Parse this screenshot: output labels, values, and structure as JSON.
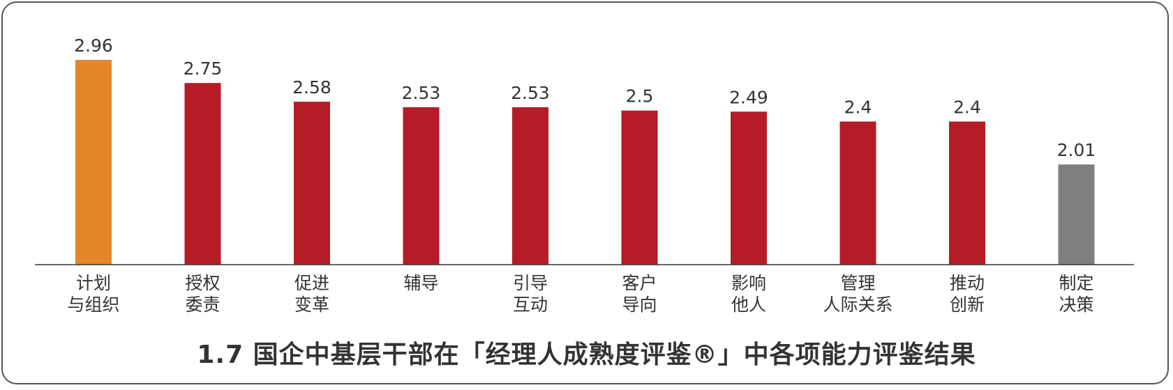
{
  "caption": "1.7  国企中基层干部在「经理人成熟度评鉴®」中各项能力评鉴结果",
  "colors": {
    "highlight": "#E5862A",
    "main": "#B51C27",
    "low": "#7F7F7F",
    "axis": "#333333",
    "text": "#333333"
  },
  "chart_data": {
    "type": "bar",
    "categories": [
      [
        "计划",
        "与组织"
      ],
      [
        "授权",
        "委责"
      ],
      [
        "促进",
        "变革"
      ],
      [
        "辅导"
      ],
      [
        "引导",
        "互动"
      ],
      [
        "客户",
        "导向"
      ],
      [
        "影响",
        "他人"
      ],
      [
        "管理",
        "人际关系"
      ],
      [
        "推动",
        "创新"
      ],
      [
        "制定",
        "决策"
      ]
    ],
    "values": [
      2.96,
      2.75,
      2.58,
      2.53,
      2.53,
      2.5,
      2.49,
      2.4,
      2.4,
      2.01
    ],
    "value_labels": [
      "2.96",
      "2.75",
      "2.58",
      "2.53",
      "2.53",
      "2.5",
      "2.49",
      "2.4",
      "2.4",
      "2.01"
    ],
    "bar_colors": [
      "highlight",
      "main",
      "main",
      "main",
      "main",
      "main",
      "main",
      "main",
      "main",
      "low"
    ],
    "ylim": [
      1.1,
      2.96
    ],
    "grid": false,
    "legend": "none"
  }
}
